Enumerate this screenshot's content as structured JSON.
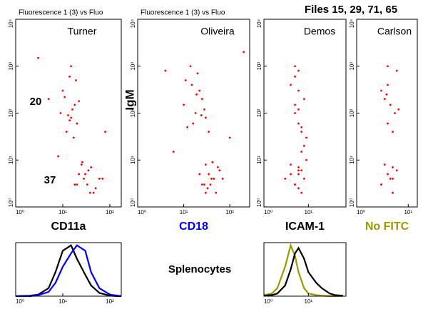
{
  "page_title": "Files 15, 29, 71, 65",
  "caption": "Splenocytes",
  "chart_data": [
    {
      "type": "scatter",
      "title": "Fluorescence 1 (3) vs Fluo",
      "label": "Turner",
      "annotations": [
        "20",
        "37"
      ],
      "xlabel": "CD11a",
      "xlabel_color": "#000000",
      "log_scale": true,
      "xlim": [
        1,
        175
      ],
      "ylim": [
        1,
        10000
      ],
      "xticks": [
        {
          "value": 1,
          "label": "10⁰"
        },
        {
          "value": 10,
          "label": "10¹"
        },
        {
          "value": 100,
          "label": "10²"
        }
      ],
      "yticks": [
        {
          "value": 1,
          "label": "10⁰"
        },
        {
          "value": 10,
          "label": "10¹"
        },
        {
          "value": 100,
          "label": "10²"
        },
        {
          "value": 1000,
          "label": "10³"
        },
        {
          "value": 10000,
          "label": "10⁴"
        }
      ],
      "x": [
        12,
        15,
        18,
        10,
        14,
        20,
        16,
        11,
        13,
        17,
        19,
        22,
        9,
        15,
        14,
        20,
        30,
        45,
        25,
        60,
        35,
        18,
        28,
        50,
        40,
        22,
        33,
        70,
        26,
        38,
        3,
        5,
        80,
        8
      ],
      "series": [
        {
          "color": "#ff0000",
          "values": [
            40,
            80,
            150,
            300,
            600,
            60,
            120,
            220,
            90,
            30,
            500,
            180,
            100,
            1000,
            70,
            3,
            5,
            2,
            8,
            4,
            6,
            3,
            4,
            2.5,
            7,
            5,
            3,
            4,
            9,
            2,
            1500,
            200,
            40,
            12
          ]
        }
      ]
    },
    {
      "type": "scatter",
      "title": "Fluorescence 1 (3) vs Fluo",
      "label": "Oliveira",
      "ylabel": "IgM",
      "xlabel": "CD18",
      "xlabel_color": "#0000ff",
      "log_scale": true,
      "xlim": [
        1,
        270
      ],
      "ylim": [
        1,
        10000
      ],
      "xticks": [
        {
          "value": 1,
          "label": "10⁰"
        },
        {
          "value": 10,
          "label": "10¹"
        },
        {
          "value": 100,
          "label": "10²"
        }
      ],
      "yticks": [
        {
          "value": 1,
          "label": "10⁰"
        },
        {
          "value": 10,
          "label": "10¹"
        },
        {
          "value": 100,
          "label": "10²"
        },
        {
          "value": 1000,
          "label": "10³"
        },
        {
          "value": 10000,
          "label": "10⁴"
        }
      ],
      "x": [
        12,
        18,
        25,
        15,
        20,
        30,
        10,
        22,
        16,
        28,
        14,
        35,
        19,
        24,
        11,
        25,
        35,
        50,
        30,
        40,
        60,
        28,
        45,
        33,
        55,
        22,
        38,
        70,
        42,
        30,
        4,
        100,
        6,
        200
      ],
      "series": [
        {
          "color": "#ff0000",
          "values": [
            50,
            100,
            200,
            400,
            700,
            80,
            150,
            300,
            60,
            120,
            1000,
            40,
            250,
            90,
            500,
            3,
            5,
            2,
            8,
            4,
            6,
            3,
            4,
            2.5,
            7,
            5,
            3,
            4,
            9,
            2,
            800,
            30,
            15,
            2000
          ]
        }
      ]
    },
    {
      "type": "scatter",
      "label": "Demos",
      "xlabel": "ICAM-1",
      "xlabel_color": "#000000",
      "log_scale": true,
      "xlim": [
        1,
        70
      ],
      "ylim": [
        1,
        10000
      ],
      "xticks": [
        {
          "value": 1,
          "label": "10⁰"
        },
        {
          "value": 10,
          "label": "10¹"
        }
      ],
      "yticks": [
        {
          "value": 1,
          "label": "10⁰"
        },
        {
          "value": 10,
          "label": "10¹"
        },
        {
          "value": 100,
          "label": "10²"
        },
        {
          "value": 1000,
          "label": "10³"
        },
        {
          "value": 10000,
          "label": "10⁴"
        }
      ],
      "x": [
        5,
        6,
        7,
        4,
        8,
        6,
        5,
        7,
        9,
        6,
        5,
        8,
        4,
        6,
        7,
        5,
        6,
        8,
        3,
        7,
        6,
        5,
        9,
        6,
        4,
        7,
        5,
        6
      ],
      "series": [
        {
          "color": "#ff0000",
          "values": [
            3,
            5,
            2,
            8,
            4,
            6,
            3,
            15,
            30,
            60,
            100,
            200,
            400,
            800,
            40,
            150,
            300,
            20,
            4,
            6,
            120,
            600,
            10,
            2.5,
            5,
            50,
            1000,
            7
          ]
        }
      ]
    },
    {
      "type": "scatter",
      "label": "Carlson",
      "xlabel": "No FITC",
      "xlabel_color": "#999900",
      "log_scale": true,
      "xlim": [
        1,
        15
      ],
      "ylim": [
        1,
        10000
      ],
      "xticks": [
        {
          "value": 1,
          "label": "10⁰"
        },
        {
          "value": 10,
          "label": "10¹"
        }
      ],
      "yticks": [
        {
          "value": 1,
          "label": "10⁰"
        },
        {
          "value": 10,
          "label": "10¹"
        },
        {
          "value": 100,
          "label": "10²"
        },
        {
          "value": 1000,
          "label": "10³"
        },
        {
          "value": 10000,
          "label": "10⁴"
        }
      ],
      "x": [
        3,
        4,
        5,
        3.5,
        4.5,
        6,
        3,
        5,
        4,
        5.5,
        3.5,
        4,
        6,
        4.5,
        3,
        5,
        4,
        6.5,
        3.8,
        5
      ],
      "series": [
        {
          "color": "#ff0000",
          "values": [
            3,
            5,
            2,
            8,
            4,
            6,
            3,
            4,
            60,
            100,
            200,
            400,
            800,
            150,
            300,
            40,
            1000,
            120,
            250,
            7
          ]
        }
      ]
    },
    {
      "type": "line",
      "log_scale": true,
      "xlim": [
        1,
        175
      ],
      "ylim": [
        0,
        100
      ],
      "xticks": [
        {
          "value": 1,
          "label": "10⁰"
        },
        {
          "value": 10,
          "label": "10¹"
        },
        {
          "value": 100,
          "label": "10²"
        }
      ],
      "x": [
        1,
        2,
        3,
        5,
        7,
        10,
        15,
        20,
        30,
        40,
        60,
        100,
        150,
        175
      ],
      "series": [
        {
          "color": "#000000",
          "values": [
            0,
            1,
            3,
            15,
            45,
            85,
            95,
            70,
            40,
            20,
            6,
            1,
            0,
            0
          ]
        },
        {
          "color": "#0000ff",
          "values": [
            0,
            0,
            2,
            8,
            25,
            55,
            80,
            95,
            85,
            45,
            15,
            3,
            1,
            0
          ]
        }
      ]
    },
    {
      "type": "line",
      "log_scale": true,
      "xlim": [
        1,
        70
      ],
      "ylim": [
        0,
        100
      ],
      "xticks": [
        {
          "value": 1,
          "label": "10⁰"
        },
        {
          "value": 10,
          "label": "10¹"
        }
      ],
      "x": [
        1,
        1.5,
        2,
        3,
        4,
        5,
        6,
        8,
        10,
        15,
        20,
        30,
        40,
        60
      ],
      "series": [
        {
          "color": "#999900",
          "values": [
            2,
            5,
            15,
            55,
            95,
            75,
            45,
            15,
            5,
            2,
            1,
            0,
            0,
            0
          ]
        },
        {
          "color": "#000000",
          "values": [
            1,
            2,
            5,
            20,
            50,
            80,
            90,
            70,
            45,
            25,
            15,
            5,
            2,
            1
          ]
        }
      ]
    }
  ]
}
